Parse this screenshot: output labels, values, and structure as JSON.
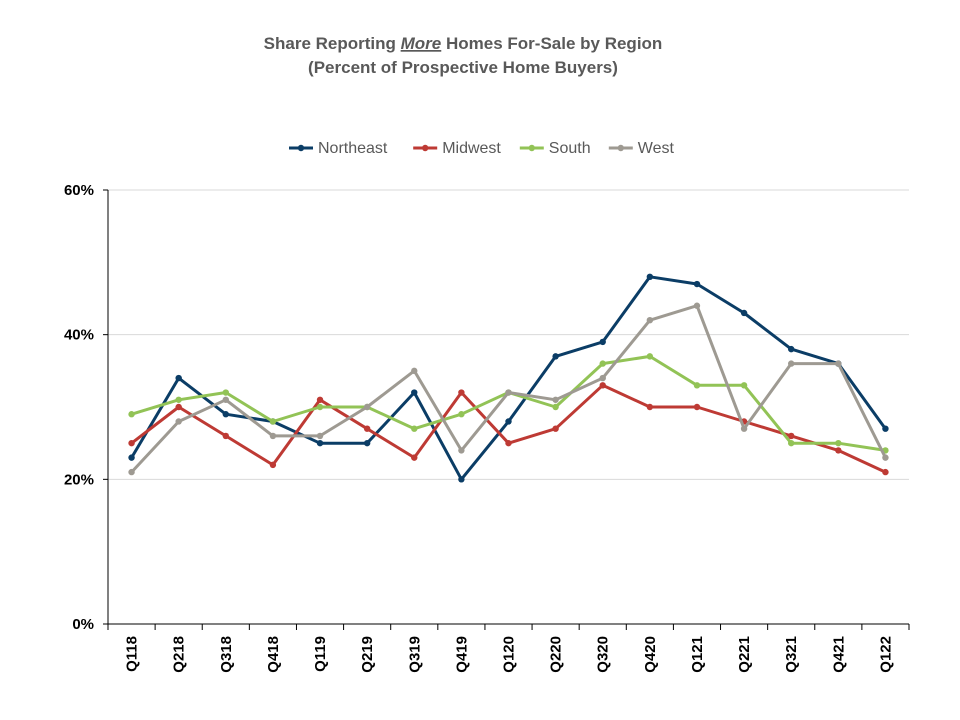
{
  "chart_data": {
    "type": "line",
    "title_prefix": "Share Reporting ",
    "title_emphasis": "More",
    "title_suffix": " Homes For-Sale by Region",
    "subtitle": "(Percent of Prospective Home Buyers)",
    "categories": [
      "Q118",
      "Q218",
      "Q318",
      "Q418",
      "Q119",
      "Q219",
      "Q319",
      "Q419",
      "Q120",
      "Q220",
      "Q320",
      "Q420",
      "Q121",
      "Q221",
      "Q321",
      "Q421",
      "Q122"
    ],
    "y_ticks": [
      "0%",
      "20%",
      "40%",
      "60%"
    ],
    "ylim": [
      0,
      60
    ],
    "grid": true,
    "legend_position": "top",
    "series": [
      {
        "name": "Northeast",
        "color": "#0b3d66",
        "values": [
          23,
          34,
          29,
          28,
          25,
          25,
          32,
          20,
          28,
          37,
          39,
          48,
          47,
          43,
          38,
          36,
          27
        ]
      },
      {
        "name": "Midwest",
        "color": "#be3a34",
        "values": [
          25,
          30,
          26,
          22,
          31,
          27,
          23,
          32,
          25,
          27,
          33,
          30,
          30,
          28,
          26,
          24,
          21
        ]
      },
      {
        "name": "South",
        "color": "#92c356",
        "values": [
          29,
          31,
          32,
          28,
          30,
          30,
          27,
          29,
          32,
          30,
          36,
          37,
          33,
          33,
          25,
          25,
          24
        ]
      },
      {
        "name": "West",
        "color": "#9e9a92",
        "values": [
          21,
          28,
          31,
          26,
          26,
          30,
          35,
          24,
          32,
          31,
          34,
          42,
          44,
          27,
          36,
          36,
          23
        ]
      }
    ]
  }
}
